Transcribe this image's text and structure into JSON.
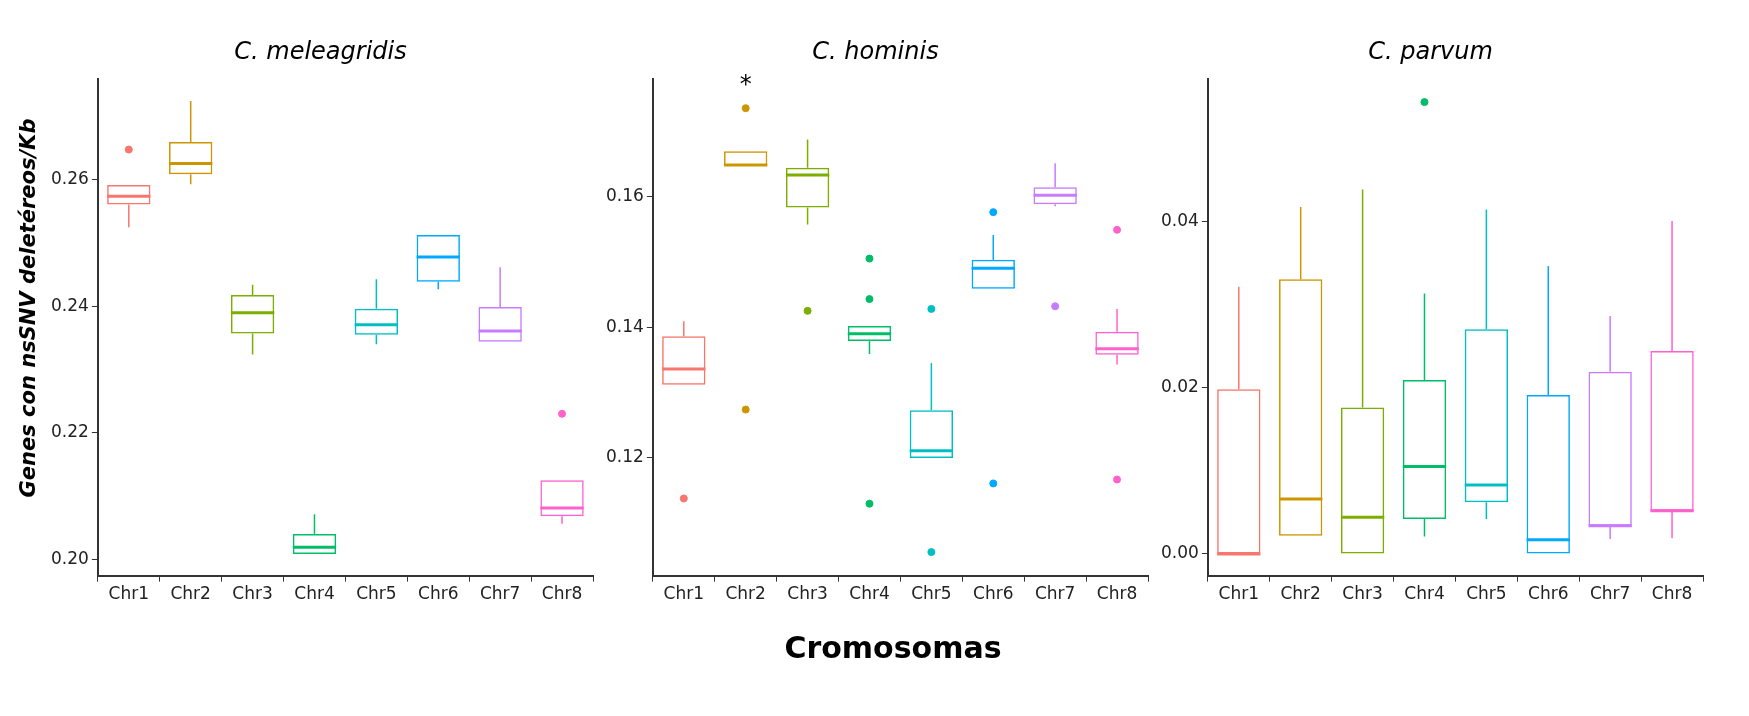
{
  "chart_data": [
    {
      "type": "box",
      "title": "C. meleagridis",
      "ylabel": "Genes con nsSNV deletéreos/Kb",
      "categories": [
        "Chr1",
        "Chr2",
        "Chr3",
        "Chr4",
        "Chr5",
        "Chr6",
        "Chr7",
        "Chr8"
      ],
      "colors": [
        "#f8766d",
        "#cd9600",
        "#7cae00",
        "#00be67",
        "#00bfc4",
        "#00a9ff",
        "#c77cff",
        "#ff61cc"
      ],
      "ylim": [
        0.1974,
        0.276
      ],
      "yticks": [
        {
          "value": 0.2,
          "label": "0.20"
        },
        0.22,
        0.24,
        0.26
      ],
      "boxes": [
        {
          "low": 0.2525,
          "q1": 0.2561,
          "median": 0.2574,
          "q3": 0.2592,
          "high": 0.2592,
          "outliers": [
            0.2648
          ]
        },
        {
          "low": 0.2593,
          "q1": 0.2609,
          "median": 0.2626,
          "q3": 0.266,
          "high": 0.2725
        },
        {
          "low": 0.2324,
          "q1": 0.2357,
          "median": 0.239,
          "q3": 0.2418,
          "high": 0.2434
        },
        {
          "low": 0.2008,
          "q1": 0.2008,
          "median": 0.2019,
          "q3": 0.204,
          "high": 0.2071
        },
        {
          "low": 0.234,
          "q1": 0.2355,
          "median": 0.2371,
          "q3": 0.2396,
          "high": 0.2443
        },
        {
          "low": 0.2427,
          "q1": 0.2439,
          "median": 0.2478,
          "q3": 0.2513,
          "high": 0.2513
        },
        {
          "low": 0.2344,
          "q1": 0.2344,
          "median": 0.2361,
          "q3": 0.2399,
          "high": 0.2462
        },
        {
          "low": 0.2056,
          "q1": 0.2068,
          "median": 0.2081,
          "q3": 0.2125,
          "high": 0.2125,
          "outliers": [
            0.223
          ]
        }
      ]
    },
    {
      "type": "box",
      "title": "C. hominis",
      "xlabel": "Cromosomas",
      "categories": [
        "Chr1",
        "Chr2",
        "Chr3",
        "Chr4",
        "Chr5",
        "Chr6",
        "Chr7",
        "Chr8"
      ],
      "colors": [
        "#f8766d",
        "#cd9600",
        "#7cae00",
        "#00be67",
        "#00bfc4",
        "#00a9ff",
        "#c77cff",
        "#ff61cc"
      ],
      "ylim": [
        0.102,
        0.178
      ],
      "yticks": [
        0.12,
        0.14,
        0.16
      ],
      "annotations": [
        "*"
      ],
      "boxes": [
        {
          "low": 0.1312,
          "q1": 0.1312,
          "median": 0.1336,
          "q3": 0.1386,
          "high": 0.1409,
          "outliers": [
            0.1138
          ]
        },
        {
          "low": 0.1647,
          "q1": 0.1647,
          "median": 0.1648,
          "q3": 0.1669,
          "high": 0.1669,
          "outliers": [
            0.1735,
            0.1274
          ]
        },
        {
          "low": 0.1557,
          "q1": 0.1583,
          "median": 0.1633,
          "q3": 0.1644,
          "high": 0.1687,
          "outliers": [
            0.1425
          ]
        },
        {
          "low": 0.1359,
          "q1": 0.1379,
          "median": 0.139,
          "q3": 0.1402,
          "high": 0.1402,
          "outliers": [
            0.1505,
            0.1443,
            0.113
          ]
        },
        {
          "low": 0.12,
          "q1": 0.12,
          "median": 0.1211,
          "q3": 0.1273,
          "high": 0.1345,
          "outliers": [
            0.1428,
            0.1056
          ]
        },
        {
          "low": 0.1459,
          "q1": 0.1459,
          "median": 0.149,
          "q3": 0.1503,
          "high": 0.1541,
          "outliers": [
            0.1576,
            0.1161
          ]
        },
        {
          "low": 0.1585,
          "q1": 0.1588,
          "median": 0.1602,
          "q3": 0.1614,
          "high": 0.1651,
          "outliers": [
            0.1432
          ]
        },
        {
          "low": 0.1343,
          "q1": 0.1358,
          "median": 0.1367,
          "q3": 0.1393,
          "high": 0.1428,
          "outliers": [
            0.1549,
            0.1167
          ]
        }
      ]
    },
    {
      "type": "box",
      "title": "C. parvum",
      "categories": [
        "Chr1",
        "Chr2",
        "Chr3",
        "Chr4",
        "Chr5",
        "Chr6",
        "Chr7",
        "Chr8"
      ],
      "colors": [
        "#f8766d",
        "#cd9600",
        "#7cae00",
        "#00be67",
        "#00bfc4",
        "#00a9ff",
        "#c77cff",
        "#ff61cc"
      ],
      "ylim": [
        -0.0026,
        0.0571
      ],
      "yticks": [
        {
          "value": 0,
          "label": "0.00"
        },
        0.02,
        0.04
      ],
      "boxes": [
        {
          "low": 0,
          "q1": 0,
          "median": 0,
          "q3": 0.0198,
          "high": 0.0321
        },
        {
          "low": 0.0022,
          "q1": 0.0022,
          "median": 0.0066,
          "q3": 0.033,
          "high": 0.0417
        },
        {
          "low": 0,
          "q1": 0,
          "median": 0.0044,
          "q3": 0.0176,
          "high": 0.0438
        },
        {
          "low": 0.0021,
          "q1": 0.0042,
          "median": 0.0105,
          "q3": 0.0209,
          "high": 0.0313,
          "outliers": [
            0.0543
          ]
        },
        {
          "low": 0.0042,
          "q1": 0.0062,
          "median": 0.0083,
          "q3": 0.027,
          "high": 0.0414
        },
        {
          "low": 0,
          "q1": 0,
          "median": 0.0017,
          "q3": 0.0191,
          "high": 0.0346
        },
        {
          "low": 0.0018,
          "q1": 0.0034,
          "median": 0.0034,
          "q3": 0.0219,
          "high": 0.0286
        },
        {
          "low": 0.0019,
          "q1": 0.0052,
          "median": 0.0052,
          "q3": 0.0244,
          "high": 0.04
        }
      ]
    }
  ]
}
